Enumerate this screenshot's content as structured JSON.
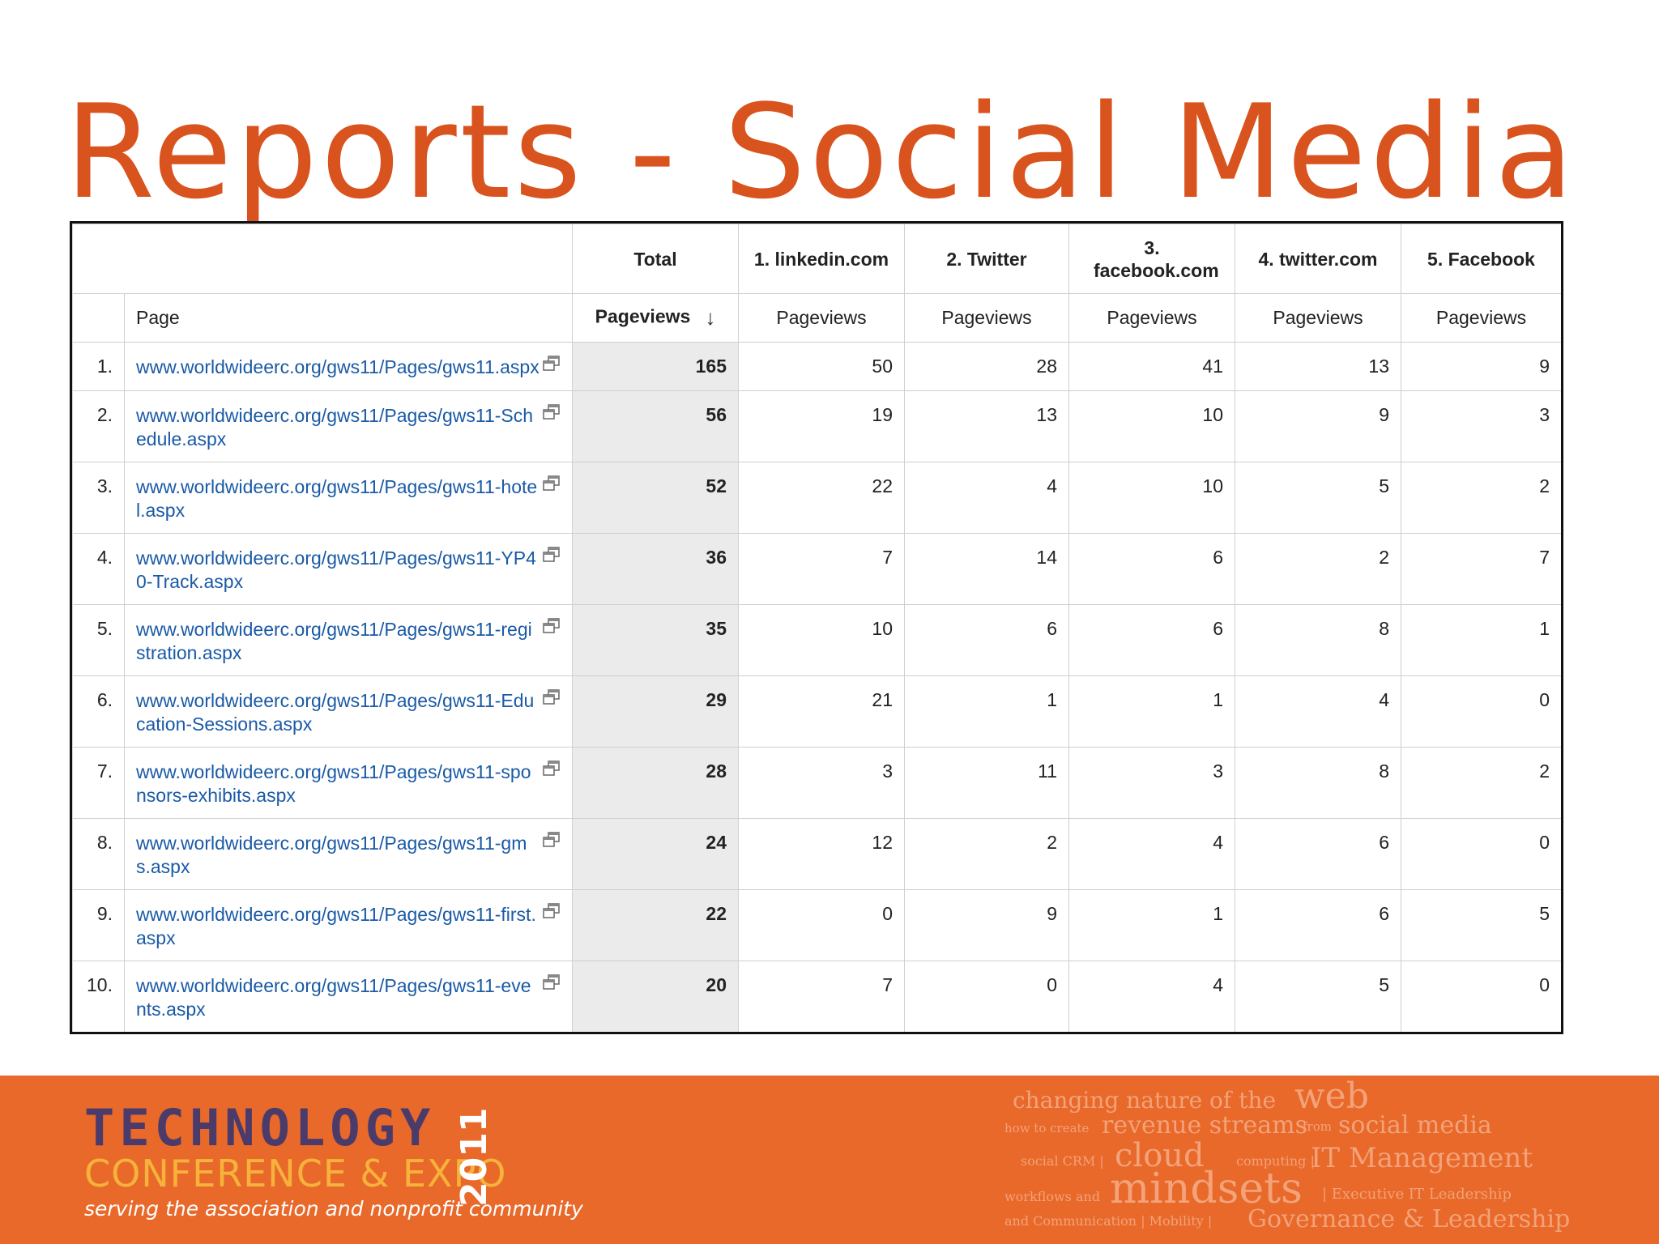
{
  "slide": {
    "title": "Reports - Social Media"
  },
  "report": {
    "headers": {
      "total": "Total",
      "sources": [
        "1. linkedin.com",
        "2. Twitter",
        "3. facebook.com",
        "4. twitter.com",
        "5. Facebook"
      ],
      "page_label": "Page",
      "metric": "Pageviews"
    },
    "rows": [
      {
        "rank": "1.",
        "page": "www.worldwideerc.org/gws11/Pages/gws11.aspx",
        "total": "165",
        "values": [
          "50",
          "28",
          "41",
          "13",
          "9"
        ]
      },
      {
        "rank": "2.",
        "page": "www.worldwideerc.org/gws11/Pages/gws11-Schedule.aspx",
        "total": "56",
        "values": [
          "19",
          "13",
          "10",
          "9",
          "3"
        ]
      },
      {
        "rank": "3.",
        "page": "www.worldwideerc.org/gws11/Pages/gws11-hotel.aspx",
        "total": "52",
        "values": [
          "22",
          "4",
          "10",
          "5",
          "2"
        ]
      },
      {
        "rank": "4.",
        "page": "www.worldwideerc.org/gws11/Pages/gws11-YP40-Track.aspx",
        "total": "36",
        "values": [
          "7",
          "14",
          "6",
          "2",
          "7"
        ]
      },
      {
        "rank": "5.",
        "page": "www.worldwideerc.org/gws11/Pages/gws11-registration.aspx",
        "total": "35",
        "values": [
          "10",
          "6",
          "6",
          "8",
          "1"
        ]
      },
      {
        "rank": "6.",
        "page": "www.worldwideerc.org/gws11/Pages/gws11-Education-Sessions.aspx",
        "total": "29",
        "values": [
          "21",
          "1",
          "1",
          "4",
          "0"
        ]
      },
      {
        "rank": "7.",
        "page": "www.worldwideerc.org/gws11/Pages/gws11-sponsors-exhibits.aspx",
        "total": "28",
        "values": [
          "3",
          "11",
          "3",
          "8",
          "2"
        ]
      },
      {
        "rank": "8.",
        "page": "www.worldwideerc.org/gws11/Pages/gws11-gms.aspx",
        "total": "24",
        "values": [
          "12",
          "2",
          "4",
          "6",
          "0"
        ]
      },
      {
        "rank": "9.",
        "page": "www.worldwideerc.org/gws11/Pages/gws11-first.aspx",
        "total": "22",
        "values": [
          "0",
          "9",
          "1",
          "6",
          "5"
        ]
      },
      {
        "rank": "10.",
        "page": "www.worldwideerc.org/gws11/Pages/gws11-events.aspx",
        "total": "20",
        "values": [
          "7",
          "0",
          "4",
          "5",
          "0"
        ]
      }
    ]
  },
  "footer": {
    "logo_line1": "TECHNOLOGY",
    "logo_line2": "CONFERENCE & EXPO",
    "logo_year": "2011",
    "tagline": "serving the association and nonprofit community",
    "cloud": {
      "changing_nature": "changing nature of the",
      "web": "web",
      "how_to_create": "how to create",
      "revenue_streams": "revenue streams",
      "from": "from",
      "social_media": "social media",
      "social_crm": "social CRM |",
      "cloud": "cloud",
      "computing": "computing |",
      "it_management": "IT Management",
      "workflows": "workflows and",
      "mindsets": "mindsets",
      "executive": "| Executive IT Leadership",
      "communication": "and Communication | Mobility |",
      "governance": "Governance & Leadership"
    }
  },
  "colors": {
    "title": "#d9531e",
    "footer_bg": "#e8692a",
    "link": "#1a5aa6",
    "logo_dark": "#4a3b6b",
    "logo_yellow": "#f6b23a"
  }
}
